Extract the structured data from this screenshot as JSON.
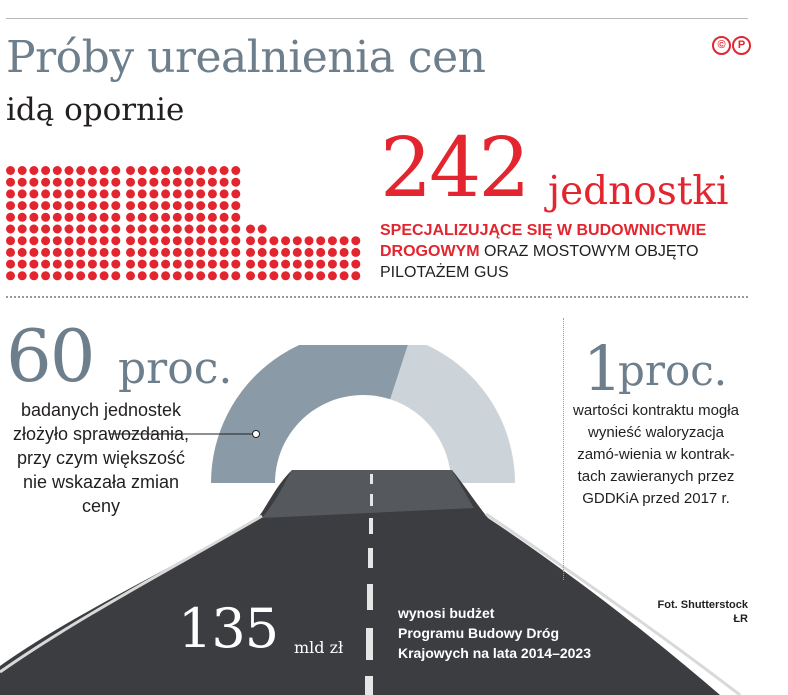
{
  "header": {
    "title": "Próby urealnienia cen",
    "subtitle": "idą opornie",
    "logo": "©P"
  },
  "units_stat": {
    "value": "242",
    "unit": "jednostki",
    "desc_highlight": "SPECJALIZUJĄCE SIĘ W BUDOWNICTWIE DROGOWYM",
    "desc_rest": " ORAZ MOSTOWYM OBJĘTO PILOTAŻEM GUS",
    "dot_count": 242,
    "dot_color": "#e3252f"
  },
  "reports_stat": {
    "value": "60",
    "unit": "proc.",
    "text": "badanych jednostek złożyło sprawozdania, przy czym większość nie wskazała zmian ceny",
    "share": 0.6,
    "color_main": "#8a9ba7",
    "color_rest": "#ccd4da"
  },
  "valorisation_stat": {
    "value": "1",
    "unit": "proc.",
    "text": "wartości kontraktu mogła wynieść waloryzacja zamó-wienia w kontrak-tach zawieranych przez GDDKiA przed 2017 r."
  },
  "budget_stat": {
    "value": "135",
    "unit": "mld zł",
    "line1": "wynosi budżet",
    "line2": "Programu Budowy Dróg",
    "line3": "Krajowych na lata 2014–2023"
  },
  "credits": {
    "photo": "Fot. Shutterstock",
    "author": "ŁR"
  }
}
